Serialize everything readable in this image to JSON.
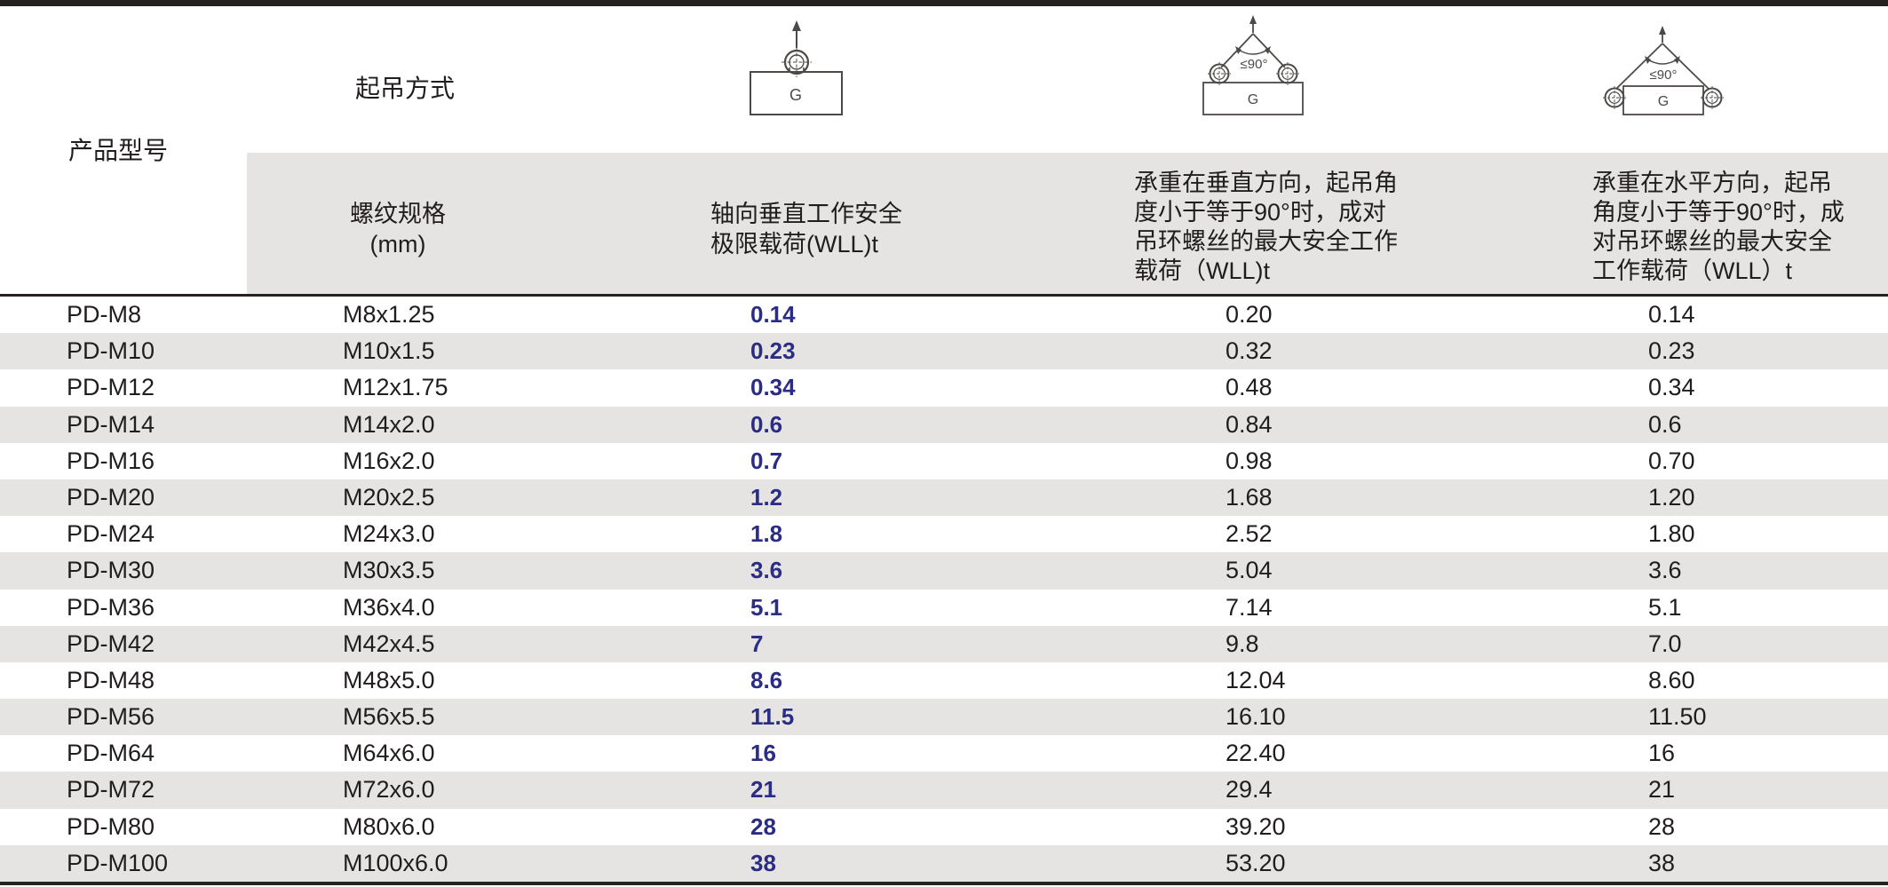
{
  "header": {
    "product_model_label": "产品型号",
    "lifting_method_label": "起吊方式",
    "col_thread": "螺纹规格\n(mm)",
    "col_axial": "轴向垂直工作安全\n极限载荷(WLL)t",
    "col_vertical_pair": "承重在垂直方向，起吊角\n度小于等于90°时，成对\n吊环螺丝的最大安全工作\n载荷（WLL)t",
    "col_horizontal_pair": "承重在水平方向，起吊\n角度小于等于90°时，成\n对吊环螺丝的最大安全\n工作载荷（WLL）t"
  },
  "diagrams": {
    "single_vertical": {
      "g_label": "G"
    },
    "pair_vertical": {
      "g_label": "G",
      "angle_label": "≤90°"
    },
    "pair_horizontal": {
      "g_label": "G",
      "angle_label": "≤90°"
    }
  },
  "colors": {
    "accent_blue": "#2b2d84",
    "stripe_gray": "#e5e4e3",
    "rule_dark": "#272222",
    "diagram_stroke": "#4d4947"
  },
  "rows": [
    {
      "model": "PD-M8",
      "thread": "M8x1.25",
      "axial": "0.14",
      "vertical_pair": "0.20",
      "horizontal_pair": "0.14"
    },
    {
      "model": "PD-M10",
      "thread": "M10x1.5",
      "axial": "0.23",
      "vertical_pair": "0.32",
      "horizontal_pair": "0.23"
    },
    {
      "model": "PD-M12",
      "thread": "M12x1.75",
      "axial": "0.34",
      "vertical_pair": "0.48",
      "horizontal_pair": "0.34"
    },
    {
      "model": "PD-M14",
      "thread": "M14x2.0",
      "axial": "0.6",
      "vertical_pair": "0.84",
      "horizontal_pair": "0.6"
    },
    {
      "model": "PD-M16",
      "thread": "M16x2.0",
      "axial": "0.7",
      "vertical_pair": "0.98",
      "horizontal_pair": "0.70"
    },
    {
      "model": "PD-M20",
      "thread": "M20x2.5",
      "axial": "1.2",
      "vertical_pair": "1.68",
      "horizontal_pair": "1.20"
    },
    {
      "model": "PD-M24",
      "thread": "M24x3.0",
      "axial": "1.8",
      "vertical_pair": "2.52",
      "horizontal_pair": "1.80"
    },
    {
      "model": "PD-M30",
      "thread": "M30x3.5",
      "axial": "3.6",
      "vertical_pair": "5.04",
      "horizontal_pair": "3.6"
    },
    {
      "model": "PD-M36",
      "thread": "M36x4.0",
      "axial": "5.1",
      "vertical_pair": "7.14",
      "horizontal_pair": "5.1"
    },
    {
      "model": "PD-M42",
      "thread": "M42x4.5",
      "axial": "7",
      "vertical_pair": "9.8",
      "horizontal_pair": "7.0"
    },
    {
      "model": "PD-M48",
      "thread": "M48x5.0",
      "axial": "8.6",
      "vertical_pair": "12.04",
      "horizontal_pair": "8.60"
    },
    {
      "model": "PD-M56",
      "thread": "M56x5.5",
      "axial": "11.5",
      "vertical_pair": "16.10",
      "horizontal_pair": "11.50"
    },
    {
      "model": "PD-M64",
      "thread": "M64x6.0",
      "axial": "16",
      "vertical_pair": "22.40",
      "horizontal_pair": "16"
    },
    {
      "model": "PD-M72",
      "thread": "M72x6.0",
      "axial": "21",
      "vertical_pair": "29.4",
      "horizontal_pair": "21"
    },
    {
      "model": "PD-M80",
      "thread": "M80x6.0",
      "axial": "28",
      "vertical_pair": "39.20",
      "horizontal_pair": "28"
    },
    {
      "model": "PD-M100",
      "thread": "M100x6.0",
      "axial": "38",
      "vertical_pair": "53.20",
      "horizontal_pair": "38"
    }
  ]
}
